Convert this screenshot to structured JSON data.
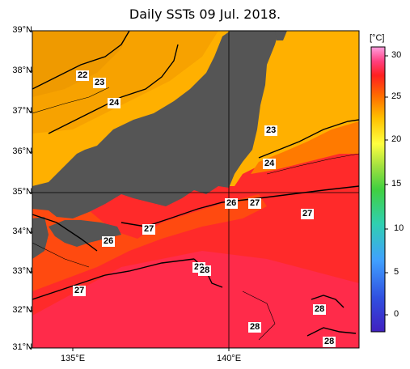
{
  "title": "Daily SSTs 09 Jul. 2018.",
  "lat_labels": [
    "39°N",
    "38°N",
    "37°N",
    "36°N",
    "35°N",
    "34°N",
    "33°N",
    "32°N",
    "31°N"
  ],
  "lon_labels": [
    "135°E",
    "140°E"
  ],
  "colorbar": {
    "unit": "[°C]",
    "ticks": [
      "30",
      "25",
      "20",
      "15",
      "10",
      "5",
      "0"
    ],
    "range": [
      -3,
      32
    ]
  },
  "contour_labels": [
    "22",
    "23",
    "24",
    "23",
    "24",
    "26",
    "27",
    "27",
    "27",
    "26",
    "28",
    "28",
    "27",
    "28",
    "28",
    "28"
  ],
  "colors": {
    "land": "#555555",
    "sst_22": "#f2a000",
    "sst_24": "#ffb300",
    "sst_26": "#ff5a00",
    "sst_27": "#ff2a2a",
    "sst_28": "#ff3060"
  }
}
